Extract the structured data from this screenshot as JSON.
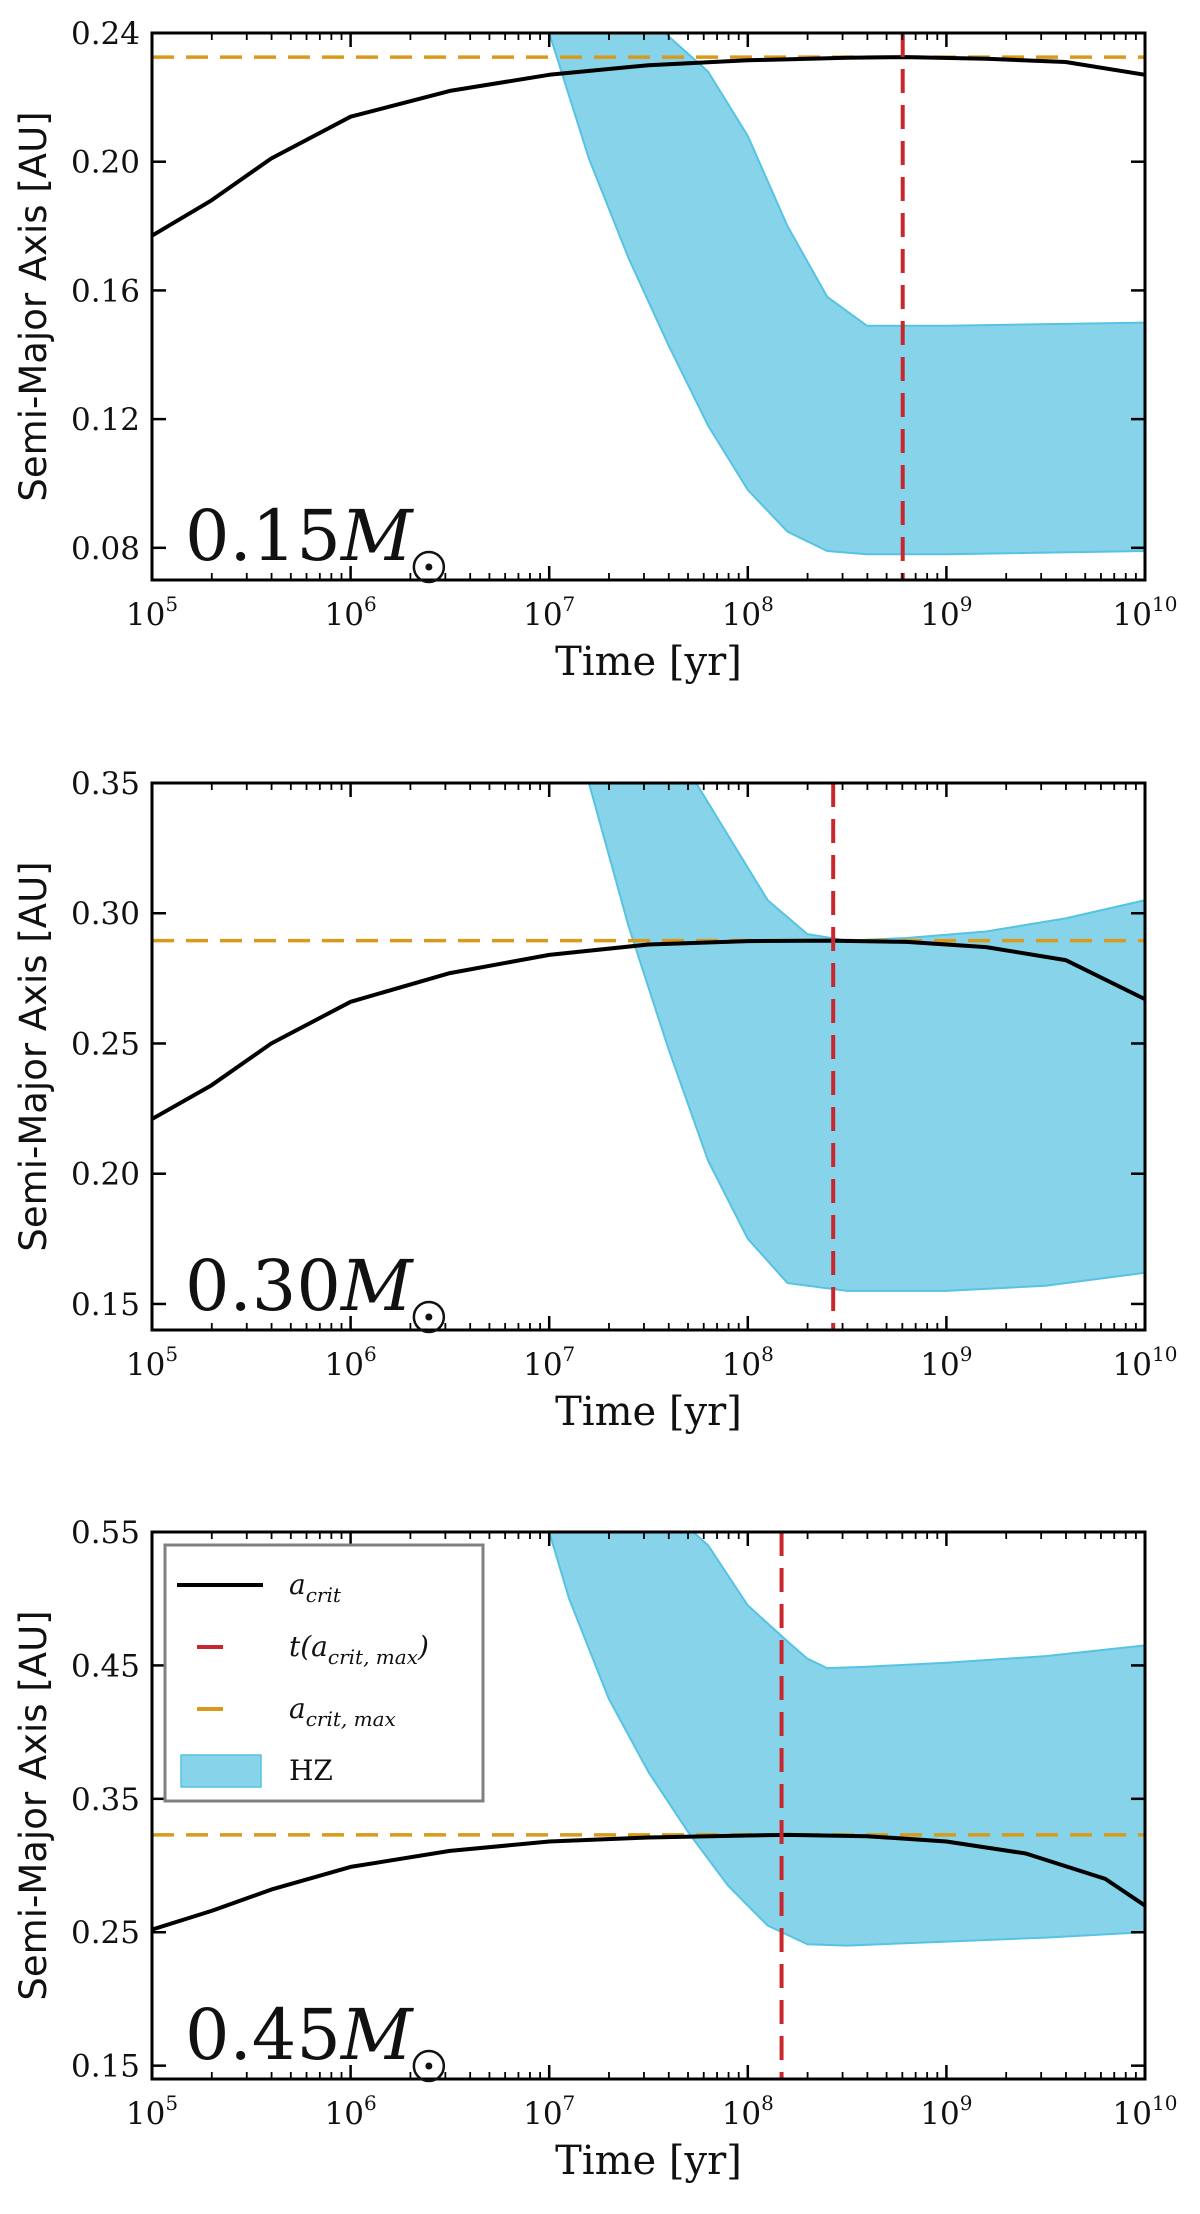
{
  "colors": {
    "hz": "#87d3ea",
    "hz_edge": "#56c3e3",
    "acrit": "#000000",
    "tcrit": "#c8282d",
    "acritmax": "#d99a1b"
  },
  "chart_data": [
    {
      "type": "line",
      "panel": "top",
      "mass_label": "0.15",
      "mass_unit": "M",
      "xlabel": "Time [yr]",
      "ylabel": "Semi-Major Axis [AU]",
      "xscale": "log",
      "xlim_log10": [
        5,
        10
      ],
      "ylim": [
        0.07,
        0.24
      ],
      "yticks": [
        "0.08",
        "0.12",
        "0.16",
        "0.20",
        "0.24"
      ],
      "xticks": [
        {
          "base": "10",
          "exp": "5"
        },
        {
          "base": "10",
          "exp": "6"
        },
        {
          "base": "10",
          "exp": "7"
        },
        {
          "base": "10",
          "exp": "8"
        },
        {
          "base": "10",
          "exp": "9"
        },
        {
          "base": "10",
          "exp": "10"
        }
      ],
      "a_crit": {
        "log_t": [
          5.0,
          5.3,
          5.6,
          6.0,
          6.5,
          7.0,
          7.5,
          8.0,
          8.5,
          8.8,
          9.2,
          9.6,
          10.0
        ],
        "a": [
          0.177,
          0.188,
          0.201,
          0.214,
          0.222,
          0.227,
          0.23,
          0.2315,
          0.2323,
          0.2325,
          0.232,
          0.231,
          0.227
        ]
      },
      "a_crit_max": 0.2325,
      "t_acrit_max_log10": 8.78,
      "hz_outer": {
        "log_t": [
          7.0,
          7.4,
          7.8,
          8.0,
          8.2,
          8.4,
          8.6,
          9.0,
          10.0
        ],
        "a": [
          0.26,
          0.25,
          0.228,
          0.208,
          0.18,
          0.158,
          0.149,
          0.149,
          0.15
        ]
      },
      "hz_inner": {
        "log_t": [
          7.0,
          7.2,
          7.4,
          7.6,
          7.8,
          8.0,
          8.2,
          8.4,
          8.6,
          9.0,
          10.0
        ],
        "a": [
          0.24,
          0.201,
          0.17,
          0.143,
          0.118,
          0.098,
          0.085,
          0.079,
          0.078,
          0.078,
          0.079
        ]
      }
    },
    {
      "type": "line",
      "panel": "middle",
      "mass_label": "0.30",
      "mass_unit": "M",
      "xlabel": "Time [yr]",
      "ylabel": "Semi-Major Axis [AU]",
      "xscale": "log",
      "xlim_log10": [
        5,
        10
      ],
      "ylim": [
        0.14,
        0.35
      ],
      "yticks": [
        "0.15",
        "0.20",
        "0.25",
        "0.30",
        "0.35"
      ],
      "xticks": [
        {
          "base": "10",
          "exp": "5"
        },
        {
          "base": "10",
          "exp": "6"
        },
        {
          "base": "10",
          "exp": "7"
        },
        {
          "base": "10",
          "exp": "8"
        },
        {
          "base": "10",
          "exp": "9"
        },
        {
          "base": "10",
          "exp": "10"
        }
      ],
      "a_crit": {
        "log_t": [
          5.0,
          5.3,
          5.6,
          6.0,
          6.5,
          7.0,
          7.5,
          8.0,
          8.4,
          8.8,
          9.2,
          9.6,
          10.0
        ],
        "a": [
          0.221,
          0.234,
          0.25,
          0.266,
          0.277,
          0.284,
          0.288,
          0.2893,
          0.2895,
          0.289,
          0.287,
          0.282,
          0.267
        ]
      },
      "a_crit_max": 0.2895,
      "t_acrit_max_log10": 8.43,
      "hz_outer": {
        "log_t": [
          7.0,
          7.4,
          7.7,
          7.9,
          8.1,
          8.3,
          8.5,
          8.8,
          9.2,
          9.6,
          10.0
        ],
        "a": [
          0.4,
          0.38,
          0.355,
          0.33,
          0.305,
          0.292,
          0.2895,
          0.2905,
          0.293,
          0.298,
          0.305
        ]
      },
      "hz_inner": {
        "log_t": [
          7.0,
          7.2,
          7.4,
          7.6,
          7.8,
          8.0,
          8.2,
          8.5,
          9.0,
          9.5,
          10.0
        ],
        "a": [
          0.4,
          0.35,
          0.295,
          0.248,
          0.205,
          0.175,
          0.158,
          0.155,
          0.155,
          0.157,
          0.162
        ]
      }
    },
    {
      "type": "line",
      "panel": "bottom",
      "mass_label": "0.45",
      "mass_unit": "M",
      "xlabel": "Time [yr]",
      "ylabel": "Semi-Major Axis [AU]",
      "xscale": "log",
      "xlim_log10": [
        5,
        10
      ],
      "ylim": [
        0.14,
        0.55
      ],
      "yticks": [
        "0.15",
        "0.25",
        "0.35",
        "0.45",
        "0.55"
      ],
      "xticks": [
        {
          "base": "10",
          "exp": "5"
        },
        {
          "base": "10",
          "exp": "6"
        },
        {
          "base": "10",
          "exp": "7"
        },
        {
          "base": "10",
          "exp": "8"
        },
        {
          "base": "10",
          "exp": "9"
        },
        {
          "base": "10",
          "exp": "10"
        }
      ],
      "a_crit": {
        "log_t": [
          5.0,
          5.3,
          5.6,
          6.0,
          6.5,
          7.0,
          7.5,
          8.0,
          8.2,
          8.6,
          9.0,
          9.4,
          9.8,
          10.0
        ],
        "a": [
          0.252,
          0.266,
          0.282,
          0.299,
          0.311,
          0.318,
          0.321,
          0.3225,
          0.323,
          0.322,
          0.318,
          0.309,
          0.29,
          0.27
        ]
      },
      "a_crit_max": 0.323,
      "t_acrit_max_log10": 8.17,
      "hz_outer": {
        "log_t": [
          7.0,
          7.5,
          7.8,
          8.0,
          8.2,
          8.3,
          8.4,
          8.6,
          9.0,
          9.5,
          10.0
        ],
        "a": [
          0.6,
          0.58,
          0.54,
          0.495,
          0.468,
          0.455,
          0.448,
          0.449,
          0.452,
          0.457,
          0.465
        ]
      },
      "hz_inner": {
        "log_t": [
          6.9,
          7.1,
          7.3,
          7.5,
          7.7,
          7.9,
          8.1,
          8.3,
          8.5,
          9.0,
          9.5,
          10.0
        ],
        "a": [
          0.6,
          0.5,
          0.425,
          0.37,
          0.325,
          0.285,
          0.255,
          0.241,
          0.24,
          0.243,
          0.246,
          0.25
        ]
      }
    }
  ],
  "legend": {
    "placement": "top-left of bottom panel",
    "items": [
      {
        "kind": "line",
        "label": "a",
        "sub": "crit"
      },
      {
        "kind": "dash-red",
        "label": "t(a",
        "sub": "crit, max",
        "suffix": ")"
      },
      {
        "kind": "dash-orange",
        "label": "a",
        "sub": "crit, max"
      },
      {
        "kind": "patch",
        "label": "HZ"
      }
    ]
  }
}
